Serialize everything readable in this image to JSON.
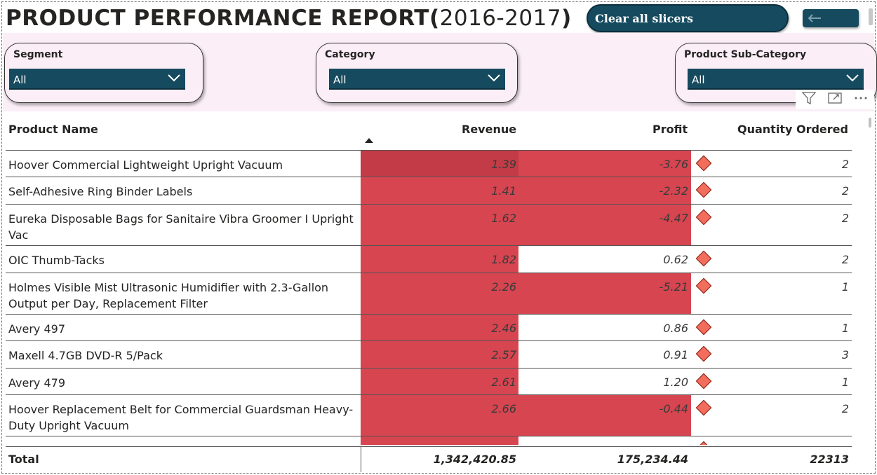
{
  "header": {
    "title_main": "PRODUCT PERFORMANCE REPORT",
    "title_paren_open": "(",
    "title_years": "2016-2017",
    "title_paren_close": ")",
    "clear_button": "Clear all slicers",
    "back_button_icon": "back-arrow-icon"
  },
  "slicers": [
    {
      "label": "Segment",
      "value": "All"
    },
    {
      "label": "Category",
      "value": "All"
    },
    {
      "label": "Product Sub-Category",
      "value": "All"
    }
  ],
  "table": {
    "columns": [
      "Product Name",
      "Revenue",
      "Profit",
      "Quantity Ordered"
    ],
    "sort_column": "Revenue",
    "rows": [
      {
        "name": "Hoover Commercial Lightweight Upright Vacuum",
        "revenue": "1.39",
        "profit": "-3.76",
        "qty": "2"
      },
      {
        "name": "Self-Adhesive Ring Binder Labels",
        "revenue": "1.41",
        "profit": "-2.32",
        "qty": "2"
      },
      {
        "name": "Eureka Disposable Bags for Sanitaire Vibra Groomer I Upright Vac",
        "revenue": "1.62",
        "profit": "-4.47",
        "qty": "2"
      },
      {
        "name": "OIC Thumb-Tacks",
        "revenue": "1.82",
        "profit": "0.62",
        "qty": "2"
      },
      {
        "name": "Holmes Visible Mist Ultrasonic Humidifier with 2.3-Gallon Output per Day, Replacement Filter",
        "revenue": "2.26",
        "profit": "-5.21",
        "qty": "1"
      },
      {
        "name": "Avery 497",
        "revenue": "2.46",
        "profit": "0.86",
        "qty": "1"
      },
      {
        "name": "Maxell 4.7GB DVD-R 5/Pack",
        "revenue": "2.57",
        "profit": "0.91",
        "qty": "3"
      },
      {
        "name": "Avery 479",
        "revenue": "2.61",
        "profit": "1.20",
        "qty": "1"
      },
      {
        "name": "Hoover Replacement Belt for Commercial Guardsman Heavy-Duty Upright Vacuum",
        "revenue": "2.66",
        "profit": "-0.44",
        "qty": "2"
      }
    ],
    "total": {
      "label": "Total",
      "revenue": "1,342,420.85",
      "profit": "175,234.44",
      "qty": "22313"
    }
  },
  "colors": {
    "accent": "#164a5f",
    "negative_fill": "#d64550",
    "band": "#fbeef6",
    "kpi_diamond": "#f26d5b"
  }
}
